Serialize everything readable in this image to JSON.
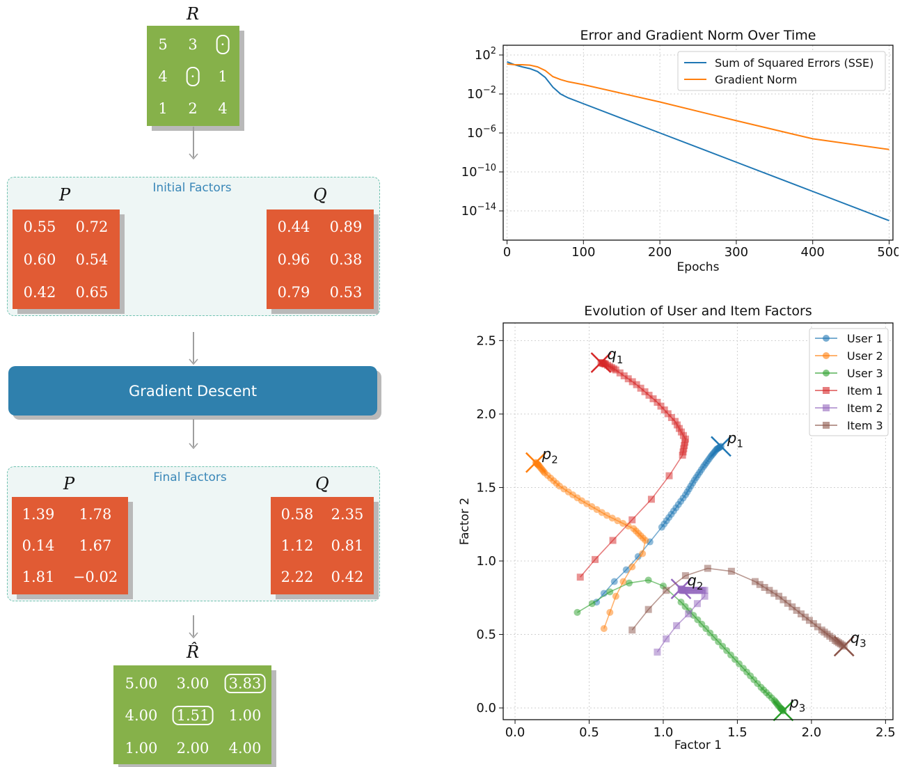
{
  "pipeline": {
    "input": {
      "label": "R",
      "rows": [
        [
          "5",
          "3",
          "·"
        ],
        [
          "4",
          "·",
          "1"
        ],
        [
          "1",
          "2",
          "4"
        ]
      ],
      "boxed": [
        [
          0,
          2
        ],
        [
          1,
          1
        ]
      ]
    },
    "initial": {
      "title": "Initial Factors",
      "p_label": "P",
      "q_label": "Q",
      "P": [
        [
          "0.55",
          "0.72"
        ],
        [
          "0.60",
          "0.54"
        ],
        [
          "0.42",
          "0.65"
        ]
      ],
      "Q": [
        [
          "0.44",
          "0.89"
        ],
        [
          "0.96",
          "0.38"
        ],
        [
          "0.79",
          "0.53"
        ]
      ]
    },
    "process": {
      "label": "Gradient Descent"
    },
    "final": {
      "title": "Final Factors",
      "p_label": "P",
      "q_label": "Q",
      "P": [
        [
          "1.39",
          "1.78"
        ],
        [
          "0.14",
          "1.67"
        ],
        [
          "1.81",
          "−0.02"
        ]
      ],
      "Q": [
        [
          "0.58",
          "2.35"
        ],
        [
          "1.12",
          "0.81"
        ],
        [
          "2.22",
          "0.42"
        ]
      ]
    },
    "output": {
      "label": "R̂",
      "rows": [
        [
          "5.00",
          "3.00",
          "3.83"
        ],
        [
          "4.00",
          "1.51",
          "1.00"
        ],
        [
          "1.00",
          "2.00",
          "4.00"
        ]
      ],
      "boxed": [
        [
          0,
          2
        ],
        [
          1,
          1
        ]
      ]
    },
    "colors": {
      "matrix_green": "#86b14a",
      "matrix_red": "#e15b34",
      "button_blue": "#2f80ad",
      "panel_title": "#3a87b8"
    }
  },
  "chart_data": [
    {
      "type": "line",
      "title": "Error and Gradient Norm Over Time",
      "xlabel": "Epochs",
      "ylabel": "",
      "xlim": [
        -5,
        505
      ],
      "ylim": [
        1e-17,
        1000.0
      ],
      "yscale": "log",
      "xticks": [
        0,
        100,
        200,
        300,
        400,
        500
      ],
      "yticks": [
        {
          "exp": 2
        },
        {
          "exp": -2
        },
        {
          "exp": -6
        },
        {
          "exp": -10
        },
        {
          "exp": -14
        }
      ],
      "grid": true,
      "legend": "top-right",
      "series": [
        {
          "name": "Sum of Squared Errors (SSE)",
          "color": "#1f77b4",
          "x": [
            0,
            10,
            20,
            30,
            40,
            50,
            60,
            70,
            80,
            100,
            200,
            300,
            400,
            500
          ],
          "y": [
            20,
            10,
            6,
            4,
            2,
            0.5,
            0.05,
            0.01,
            0.004,
            0.001,
            1e-06,
            1e-09,
            1e-12,
            1e-15
          ]
        },
        {
          "name": "Gradient Norm",
          "color": "#ff7f0e",
          "x": [
            0,
            10,
            20,
            30,
            40,
            50,
            60,
            70,
            80,
            100,
            200,
            300,
            400,
            500
          ],
          "y": [
            12,
            10,
            10,
            9,
            6,
            2.5,
            0.6,
            0.3,
            0.18,
            0.09,
            0.0015,
            1.8e-05,
            2.5e-07,
            2e-08
          ]
        }
      ]
    },
    {
      "type": "scatter",
      "title": "Evolution of User and Item Factors",
      "xlabel": "Factor 1",
      "ylabel": "Factor 2",
      "xlim": [
        -0.08,
        2.55
      ],
      "ylim": [
        -0.08,
        2.62
      ],
      "xticks": [
        0.0,
        0.5,
        1.0,
        1.5,
        2.0,
        2.5
      ],
      "yticks": [
        0.0,
        0.5,
        1.0,
        1.5,
        2.0,
        2.5
      ],
      "grid": true,
      "legend": "top-right",
      "series": [
        {
          "name": "User 1",
          "color": "#1f77b4",
          "marker": "circle",
          "end_label": "p",
          "end_sub": "1",
          "points": [
            [
              0.55,
              0.72
            ],
            [
              0.6,
              0.78
            ],
            [
              0.67,
              0.86
            ],
            [
              0.75,
              0.94
            ],
            [
              0.83,
              1.03
            ],
            [
              0.91,
              1.13
            ],
            [
              0.99,
              1.23
            ],
            [
              1.07,
              1.34
            ],
            [
              1.15,
              1.45
            ],
            [
              1.21,
              1.55
            ],
            [
              1.27,
              1.64
            ],
            [
              1.32,
              1.71
            ],
            [
              1.36,
              1.76
            ],
            [
              1.39,
              1.78
            ]
          ]
        },
        {
          "name": "User 2",
          "color": "#ff7f0e",
          "marker": "circle",
          "end_label": "p",
          "end_sub": "2",
          "points": [
            [
              0.6,
              0.54
            ],
            [
              0.64,
              0.65
            ],
            [
              0.68,
              0.76
            ],
            [
              0.73,
              0.86
            ],
            [
              0.79,
              0.96
            ],
            [
              0.86,
              1.05
            ],
            [
              0.88,
              1.14
            ],
            [
              0.8,
              1.22
            ],
            [
              0.62,
              1.31
            ],
            [
              0.45,
              1.41
            ],
            [
              0.3,
              1.51
            ],
            [
              0.2,
              1.6
            ],
            [
              0.16,
              1.65
            ],
            [
              0.14,
              1.67
            ]
          ]
        },
        {
          "name": "User 3",
          "color": "#2ca02c",
          "marker": "circle",
          "end_label": "p",
          "end_sub": "3",
          "points": [
            [
              0.42,
              0.65
            ],
            [
              0.52,
              0.71
            ],
            [
              0.64,
              0.79
            ],
            [
              0.77,
              0.85
            ],
            [
              0.9,
              0.87
            ],
            [
              1.0,
              0.83
            ],
            [
              1.12,
              0.72
            ],
            [
              1.26,
              0.57
            ],
            [
              1.4,
              0.42
            ],
            [
              1.54,
              0.27
            ],
            [
              1.66,
              0.14
            ],
            [
              1.75,
              0.05
            ],
            [
              1.79,
              0.0
            ],
            [
              1.81,
              -0.02
            ]
          ]
        },
        {
          "name": "Item 1",
          "color": "#d62728",
          "marker": "square",
          "end_label": "q",
          "end_sub": "1",
          "points": [
            [
              0.44,
              0.89
            ],
            [
              0.54,
              1.01
            ],
            [
              0.66,
              1.14
            ],
            [
              0.79,
              1.28
            ],
            [
              0.92,
              1.42
            ],
            [
              1.04,
              1.58
            ],
            [
              1.13,
              1.72
            ],
            [
              1.15,
              1.83
            ],
            [
              1.08,
              1.95
            ],
            [
              0.96,
              2.08
            ],
            [
              0.82,
              2.2
            ],
            [
              0.68,
              2.3
            ],
            [
              0.61,
              2.34
            ],
            [
              0.58,
              2.35
            ]
          ]
        },
        {
          "name": "Item 2",
          "color": "#9467bd",
          "marker": "square",
          "end_label": "q",
          "end_sub": "2",
          "points": [
            [
              0.96,
              0.38
            ],
            [
              1.02,
              0.47
            ],
            [
              1.09,
              0.56
            ],
            [
              1.17,
              0.64
            ],
            [
              1.23,
              0.71
            ],
            [
              1.28,
              0.76
            ],
            [
              1.28,
              0.8
            ],
            [
              1.22,
              0.8
            ],
            [
              1.16,
              0.8
            ],
            [
              1.13,
              0.8
            ],
            [
              1.12,
              0.81
            ]
          ]
        },
        {
          "name": "Item 3",
          "color": "#8c564b",
          "marker": "square",
          "end_label": "q",
          "end_sub": "3",
          "points": [
            [
              0.79,
              0.53
            ],
            [
              0.9,
              0.67
            ],
            [
              1.02,
              0.8
            ],
            [
              1.15,
              0.9
            ],
            [
              1.3,
              0.95
            ],
            [
              1.46,
              0.93
            ],
            [
              1.62,
              0.86
            ],
            [
              1.78,
              0.76
            ],
            [
              1.93,
              0.64
            ],
            [
              2.07,
              0.53
            ],
            [
              2.16,
              0.46
            ],
            [
              2.22,
              0.42
            ]
          ]
        }
      ]
    }
  ]
}
